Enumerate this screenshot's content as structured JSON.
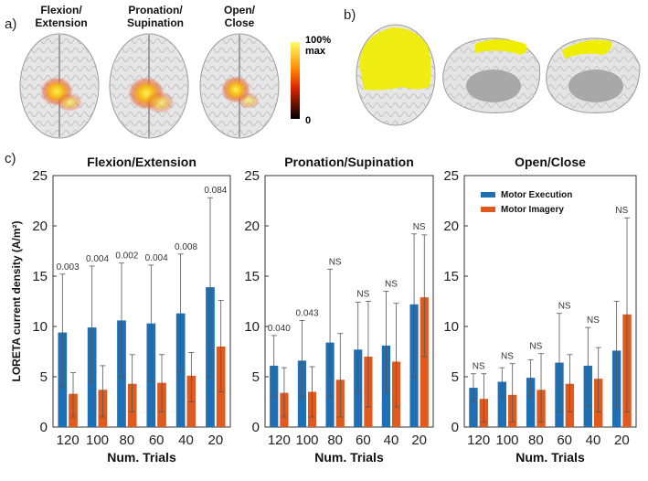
{
  "panels": {
    "a": "a)",
    "b": "b)",
    "c": "c)"
  },
  "brain_labels": [
    "Flexion/\nExtension",
    "Pronation/\nSupination",
    "Open/\nClose"
  ],
  "colorbar": {
    "top_label": "100%\nmax",
    "bottom_label": "0",
    "colors": [
      "#ffff66",
      "#ff4400",
      "#000000"
    ]
  },
  "colors": {
    "motor_execution": "#1f6fb5",
    "motor_imagery": "#e05a1e",
    "brain": "#d9d9d9",
    "highlight": "#f0ee00"
  },
  "chart_data": [
    {
      "type": "bar",
      "title": "Flexion/Extension",
      "xlabel": "Num. Trials",
      "ylabel": "LORETA current density (A/m²)",
      "ylim": [
        0,
        25
      ],
      "yticks": [
        0,
        5,
        10,
        15,
        20,
        25
      ],
      "categories": [
        "120",
        "100",
        "80",
        "60",
        "40",
        "20"
      ],
      "series": [
        {
          "name": "Motor Execution",
          "values": [
            9.4,
            9.9,
            10.6,
            10.3,
            11.3,
            13.9
          ],
          "error_upper": [
            15.2,
            16.0,
            16.3,
            16.1,
            17.2,
            22.8
          ],
          "error_lower": [
            4.0,
            4.5,
            5.0,
            4.6,
            5.5,
            5.0
          ]
        },
        {
          "name": "Motor Imagery",
          "values": [
            3.3,
            3.7,
            4.3,
            4.4,
            5.1,
            8.0
          ],
          "error_upper": [
            5.4,
            6.1,
            7.2,
            7.2,
            7.4,
            12.6
          ],
          "error_lower": [
            1.0,
            1.0,
            1.5,
            1.5,
            2.5,
            3.5
          ]
        }
      ],
      "annotations": [
        "0.003",
        "0.004",
        "0.002",
        "0.004",
        "0.008",
        "0.084"
      ],
      "legend": null
    },
    {
      "type": "bar",
      "title": "Pronation/Supination",
      "xlabel": "Num. Trials",
      "ylabel": "",
      "ylim": [
        0,
        25
      ],
      "yticks": [
        0,
        5,
        10,
        15,
        20,
        25
      ],
      "categories": [
        "120",
        "100",
        "80",
        "60",
        "40",
        "20"
      ],
      "series": [
        {
          "name": "Motor Execution",
          "values": [
            6.1,
            6.6,
            8.4,
            7.7,
            8.1,
            12.2
          ],
          "error_upper": [
            9.1,
            10.6,
            15.7,
            12.4,
            13.5,
            19.2
          ],
          "error_lower": [
            3.0,
            3.0,
            3.0,
            3.5,
            3.5,
            5.0
          ]
        },
        {
          "name": "Motor Imagery",
          "values": [
            3.4,
            3.5,
            4.7,
            7.0,
            6.5,
            12.9
          ],
          "error_upper": [
            5.9,
            6.0,
            9.3,
            12.5,
            12.3,
            19.1
          ],
          "error_lower": [
            1.0,
            1.0,
            1.0,
            2.0,
            2.0,
            7.0
          ]
        }
      ],
      "annotations": [
        "0.040",
        "0.043",
        "NS",
        "NS",
        "NS",
        "NS"
      ],
      "legend": null
    },
    {
      "type": "bar",
      "title": "Open/Close",
      "xlabel": "Num. Trials",
      "ylabel": "",
      "ylim": [
        0,
        25
      ],
      "yticks": [
        0,
        5,
        10,
        15,
        20,
        25
      ],
      "categories": [
        "120",
        "100",
        "80",
        "60",
        "40",
        "20"
      ],
      "series": [
        {
          "name": "Motor Execution",
          "values": [
            3.9,
            4.5,
            4.9,
            6.4,
            6.1,
            7.6
          ],
          "error_upper": [
            5.3,
            5.9,
            6.7,
            11.3,
            9.9,
            12.5
          ],
          "error_lower": [
            2.5,
            3.0,
            3.0,
            1.5,
            2.0,
            2.0
          ]
        },
        {
          "name": "Motor Imagery",
          "values": [
            2.8,
            3.2,
            3.7,
            4.3,
            4.8,
            11.2
          ],
          "error_upper": [
            5.3,
            6.3,
            7.3,
            7.2,
            7.9,
            20.8
          ],
          "error_lower": [
            0.5,
            0.5,
            0.5,
            1.5,
            1.5,
            1.5
          ]
        }
      ],
      "annotations": [
        "NS",
        "NS",
        "NS",
        "NS",
        "NS",
        "NS"
      ],
      "legend": "top-left"
    }
  ]
}
